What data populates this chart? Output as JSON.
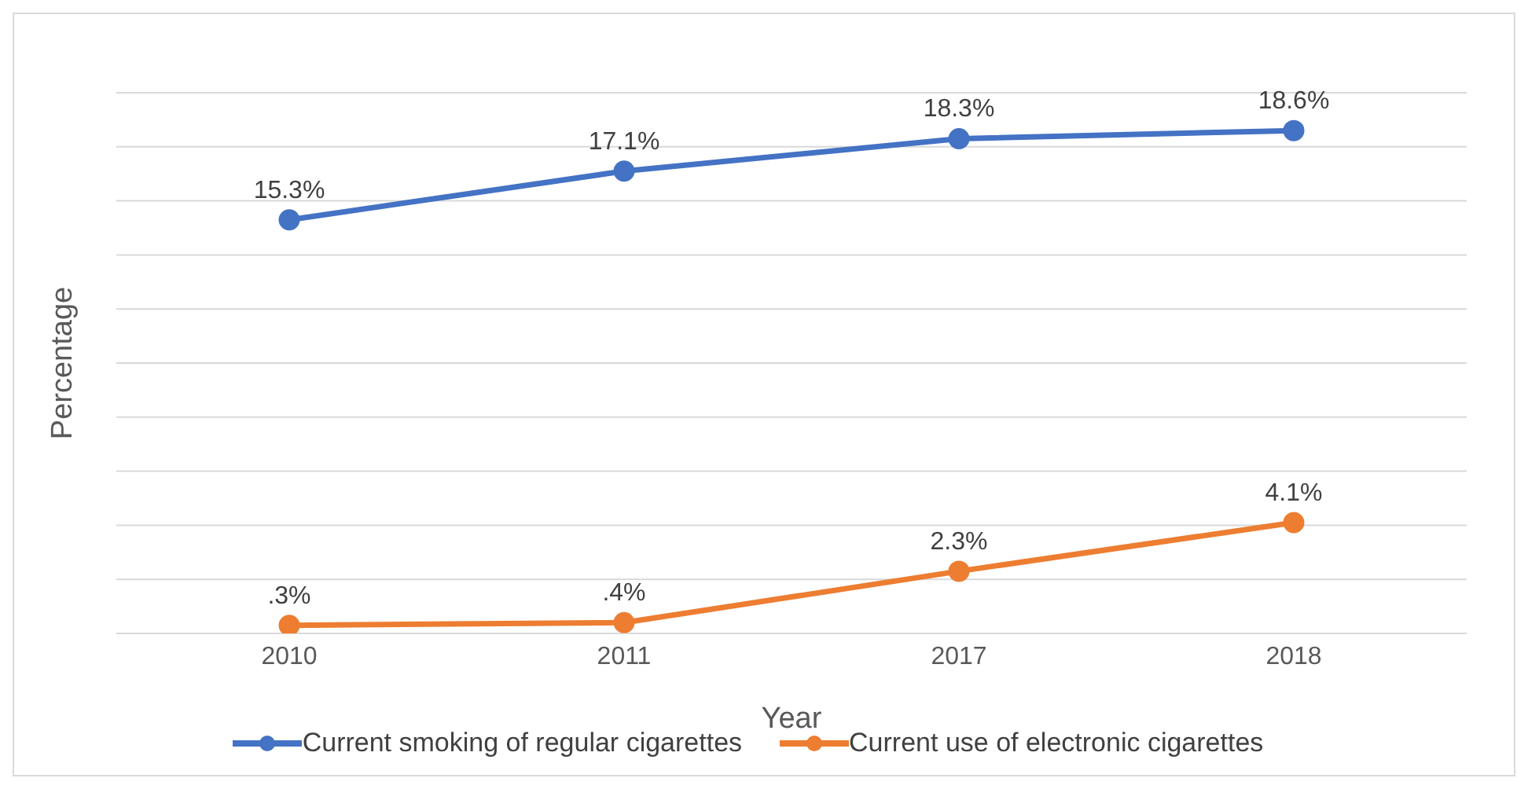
{
  "chart_data": {
    "type": "line",
    "xlabel": "Year",
    "ylabel": "Percentage",
    "categories": [
      "2010",
      "2011",
      "2017",
      "2018"
    ],
    "series": [
      {
        "name": "Current smoking of regular cigarettes",
        "color": "#4472c4",
        "values": [
          15.3,
          17.1,
          18.3,
          18.6
        ],
        "value_labels": [
          "15.3%",
          "17.1%",
          "18.3%",
          "18.6%"
        ]
      },
      {
        "name": "Current use of electronic cigarettes",
        "color": "#ed7d31",
        "values": [
          0.3,
          0.4,
          2.3,
          4.1
        ],
        "value_labels": [
          ".3%",
          ".4%",
          "2.3%",
          "4.1%"
        ]
      }
    ],
    "ylim": [
      0,
      20
    ],
    "yticks": [
      {
        "value": 0,
        "label": null
      },
      {
        "value": 2,
        "label": null
      },
      {
        "value": 4,
        "label": null
      },
      {
        "value": 6,
        "label": null
      },
      {
        "value": 8,
        "label": null
      },
      {
        "value": 10,
        "label": null
      },
      {
        "value": 12,
        "label": null
      },
      {
        "value": 14,
        "label": null
      },
      {
        "value": 16,
        "label": null
      },
      {
        "value": 18,
        "label": null
      },
      {
        "value": 20,
        "label": null
      }
    ],
    "tick_labels": "x",
    "grid": "y",
    "legend": "bottom",
    "marker": "circle",
    "line_style": "solid"
  }
}
